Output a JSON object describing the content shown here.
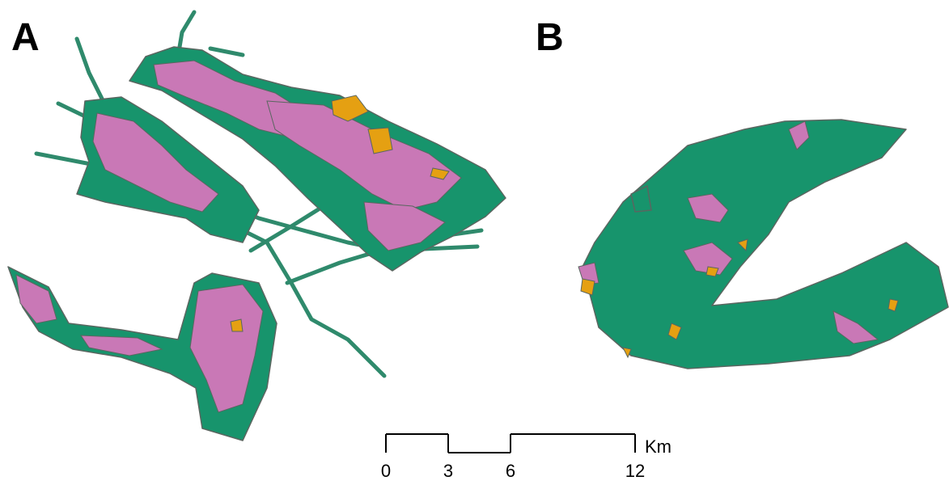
{
  "panels": [
    {
      "label": "A"
    },
    {
      "label": "B"
    }
  ],
  "scale_bar": {
    "ticks": [
      0,
      3,
      6,
      12
    ],
    "unit": "Km"
  }
}
